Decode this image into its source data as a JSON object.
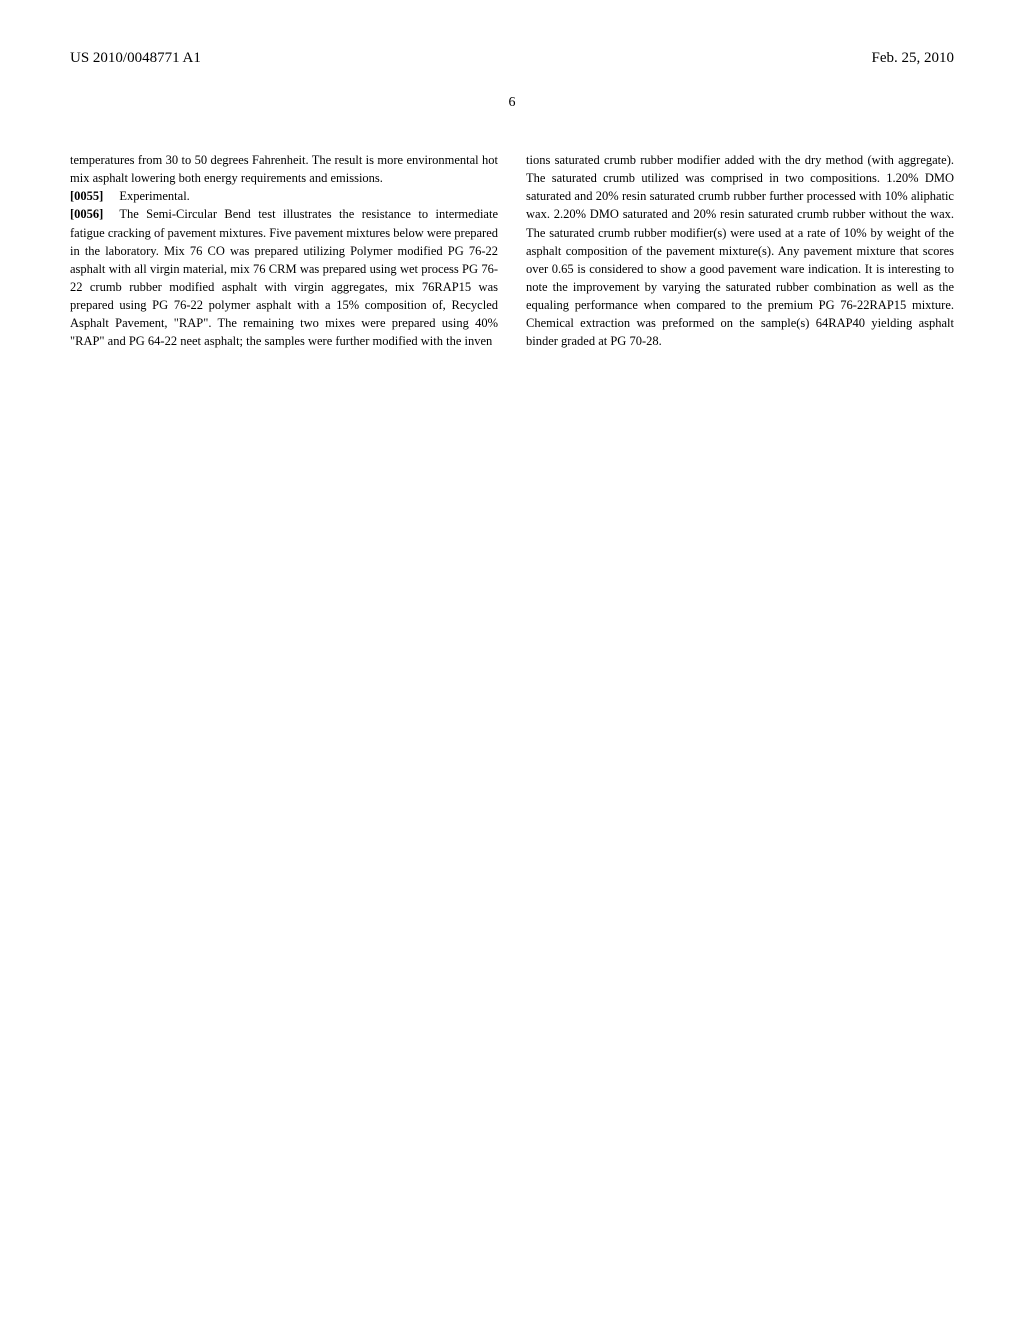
{
  "header": {
    "publication_number": "US 2010/0048771 A1",
    "date": "Feb. 25, 2010"
  },
  "page_number": "6",
  "columns": {
    "left": {
      "continuation": "temperatures from 30 to 50 degrees Fahrenheit. The result is more environmental hot mix asphalt lowering both energy requirements and emissions.",
      "para_0055_num": "[0055]",
      "para_0055_text": "Experimental.",
      "para_0056_num": "[0056]",
      "para_0056_text": "The Semi-Circular Bend test illustrates the resistance to intermediate fatigue cracking of pavement mixtures. Five pavement mixtures below were prepared in the laboratory. Mix 76 CO was prepared utilizing Polymer modified PG 76-22 asphalt with all virgin material, mix 76 CRM was prepared using wet process PG 76-22 crumb rubber modified asphalt with virgin aggregates, mix 76RAP15 was prepared using PG 76-22 polymer asphalt with a 15% composition of, Recycled Asphalt Pavement, \"RAP\". The remaining two mixes were prepared using 40% \"RAP\" and PG 64-22 neet asphalt; the samples were further modified with the inven"
    },
    "right": {
      "continuation": "tions saturated crumb rubber modifier added with the dry method (with aggregate). The saturated crumb utilized was comprised in two compositions. 1.20% DMO saturated and 20% resin saturated crumb rubber further processed with 10% aliphatic wax. 2.20% DMO saturated and 20% resin saturated crumb rubber without the wax. The saturated crumb rubber modifier(s) were used at a rate of 10% by weight of the asphalt composition of the pavement mixture(s). Any pavement mixture that scores over 0.65 is considered to show a good pavement ware indication. It is interesting to note the improvement by varying the saturated rubber combination as well as the equaling performance when compared to the premium PG 76-22RAP15 mixture. Chemical extraction was preformed on the sample(s) 64RAP40 yielding asphalt binder graded at PG 70-28."
    }
  }
}
